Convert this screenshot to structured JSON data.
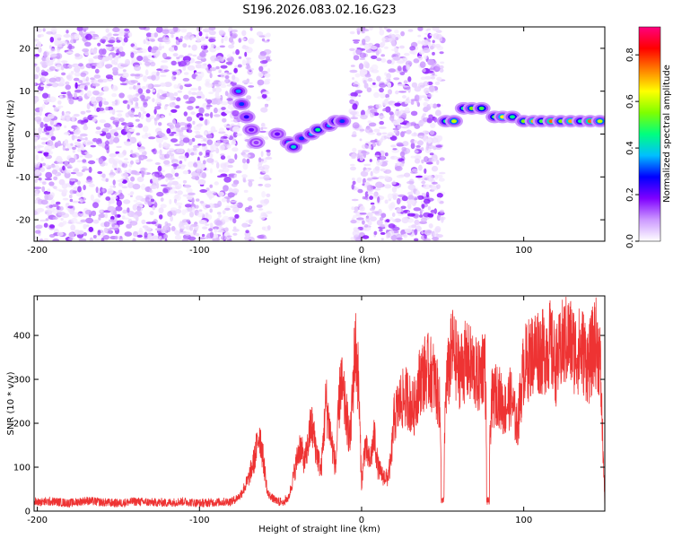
{
  "chart_data": [
    {
      "type": "heatmap",
      "title": "S196.2026.083.02.16.G23",
      "xlabel": "Height of straight line (km)",
      "ylabel": "Frequency (Hz)",
      "xlim": [
        -202,
        150
      ],
      "ylim": [
        -25,
        25
      ],
      "xticks": [
        -200,
        -100,
        0,
        100
      ],
      "yticks": [
        -20,
        -10,
        0,
        10,
        20
      ],
      "grid": false,
      "noise_regions": [
        [
          -202,
          -75
        ],
        [
          -73,
          -68
        ],
        [
          -63,
          -57
        ],
        [
          -6,
          50
        ]
      ],
      "signal_track": [
        {
          "x": -76,
          "y": 10,
          "a": 0.35
        },
        {
          "x": -74,
          "y": 7,
          "a": 0.3
        },
        {
          "x": -71,
          "y": 4,
          "a": 0.25
        },
        {
          "x": -68,
          "y": 1,
          "a": 0.2
        },
        {
          "x": -65,
          "y": -2,
          "a": 0.15
        },
        {
          "x": -52,
          "y": 0,
          "a": 0.2
        },
        {
          "x": -45,
          "y": -2,
          "a": 0.35
        },
        {
          "x": -42,
          "y": -3,
          "a": 0.4
        },
        {
          "x": -37,
          "y": -1,
          "a": 0.3
        },
        {
          "x": -31,
          "y": 0,
          "a": 0.35
        },
        {
          "x": -27,
          "y": 1,
          "a": 0.45
        },
        {
          "x": -20,
          "y": 2,
          "a": 0.35
        },
        {
          "x": -16,
          "y": 3,
          "a": 0.4
        },
        {
          "x": -12,
          "y": 3,
          "a": 0.3
        },
        {
          "x": 52,
          "y": 3,
          "a": 0.45
        },
        {
          "x": 57,
          "y": 3,
          "a": 0.6
        },
        {
          "x": 63,
          "y": 6,
          "a": 0.45
        },
        {
          "x": 68,
          "y": 6,
          "a": 0.55
        },
        {
          "x": 74,
          "y": 6,
          "a": 0.5
        },
        {
          "x": 82,
          "y": 4,
          "a": 0.5
        },
        {
          "x": 87,
          "y": 4,
          "a": 0.65
        },
        {
          "x": 93,
          "y": 4,
          "a": 0.45
        },
        {
          "x": 100,
          "y": 3,
          "a": 0.55
        },
        {
          "x": 106,
          "y": 3,
          "a": 0.7
        },
        {
          "x": 111,
          "y": 3,
          "a": 0.5
        },
        {
          "x": 117,
          "y": 3,
          "a": 0.75
        },
        {
          "x": 123,
          "y": 3,
          "a": 0.55
        },
        {
          "x": 129,
          "y": 3,
          "a": 0.7
        },
        {
          "x": 135,
          "y": 3,
          "a": 0.45
        },
        {
          "x": 141,
          "y": 3,
          "a": 0.75
        },
        {
          "x": 147,
          "y": 3,
          "a": 0.6
        }
      ],
      "colorbar": {
        "label": "Normalized spectral amplitude",
        "range": [
          0,
          0.92
        ],
        "ticks": [
          0.0,
          0.2,
          0.4,
          0.6,
          0.8
        ],
        "tick_labels": [
          "0.0",
          "0.2",
          "0.4",
          "0.6",
          "0.8"
        ],
        "colors": [
          "#ffffff",
          "#cc99ff",
          "#7f00ff",
          "#0000ff",
          "#00bfff",
          "#00ff7f",
          "#7fff00",
          "#ffff00",
          "#ff7f00",
          "#ff0000",
          "#ff007f"
        ]
      }
    },
    {
      "type": "line",
      "xlabel": "Height of straight line (km)",
      "ylabel": "SNR (10 * v/v)",
      "xlim": [
        -202,
        150
      ],
      "ylim": [
        0,
        490
      ],
      "xticks": [
        -200,
        -100,
        0,
        100
      ],
      "yticks": [
        0,
        100,
        200,
        300,
        400
      ],
      "grid": false,
      "color": "#ee3333",
      "series": [
        {
          "x": [
            -202,
            -190,
            -180,
            -170,
            -160,
            -150,
            -140,
            -130,
            -120,
            -110,
            -100,
            -90,
            -80,
            -75,
            -70,
            -66,
            -63,
            -60,
            -58,
            -55,
            -52,
            -50,
            -48,
            -45,
            -42,
            -38,
            -35,
            -31,
            -28,
            -25,
            -22,
            -19,
            -16,
            -13,
            -10,
            -7,
            -4,
            -2,
            0,
            2,
            5,
            8,
            10,
            13,
            16,
            18,
            20,
            24,
            28,
            32,
            36,
            40,
            44,
            48,
            50,
            52,
            56,
            60,
            64,
            68,
            72,
            76,
            78,
            80,
            84,
            88,
            92,
            96,
            100,
            104,
            108,
            112,
            116,
            120,
            124,
            128,
            132,
            136,
            140,
            144,
            147,
            150
          ],
          "y": [
            20,
            22,
            18,
            24,
            20,
            18,
            22,
            20,
            19,
            22,
            18,
            20,
            22,
            35,
            70,
            120,
            180,
            100,
            40,
            30,
            20,
            20,
            25,
            30,
            80,
            150,
            110,
            200,
            140,
            90,
            250,
            170,
            100,
            300,
            230,
            160,
            380,
            300,
            60,
            150,
            110,
            170,
            100,
            80,
            75,
            110,
            210,
            250,
            260,
            230,
            300,
            320,
            310,
            250,
            20,
            280,
            370,
            320,
            340,
            330,
            300,
            350,
            20,
            250,
            270,
            230,
            260,
            190,
            330,
            350,
            370,
            360,
            380,
            330,
            380,
            390,
            360,
            370,
            330,
            390,
            350,
            20
          ]
        }
      ]
    }
  ]
}
